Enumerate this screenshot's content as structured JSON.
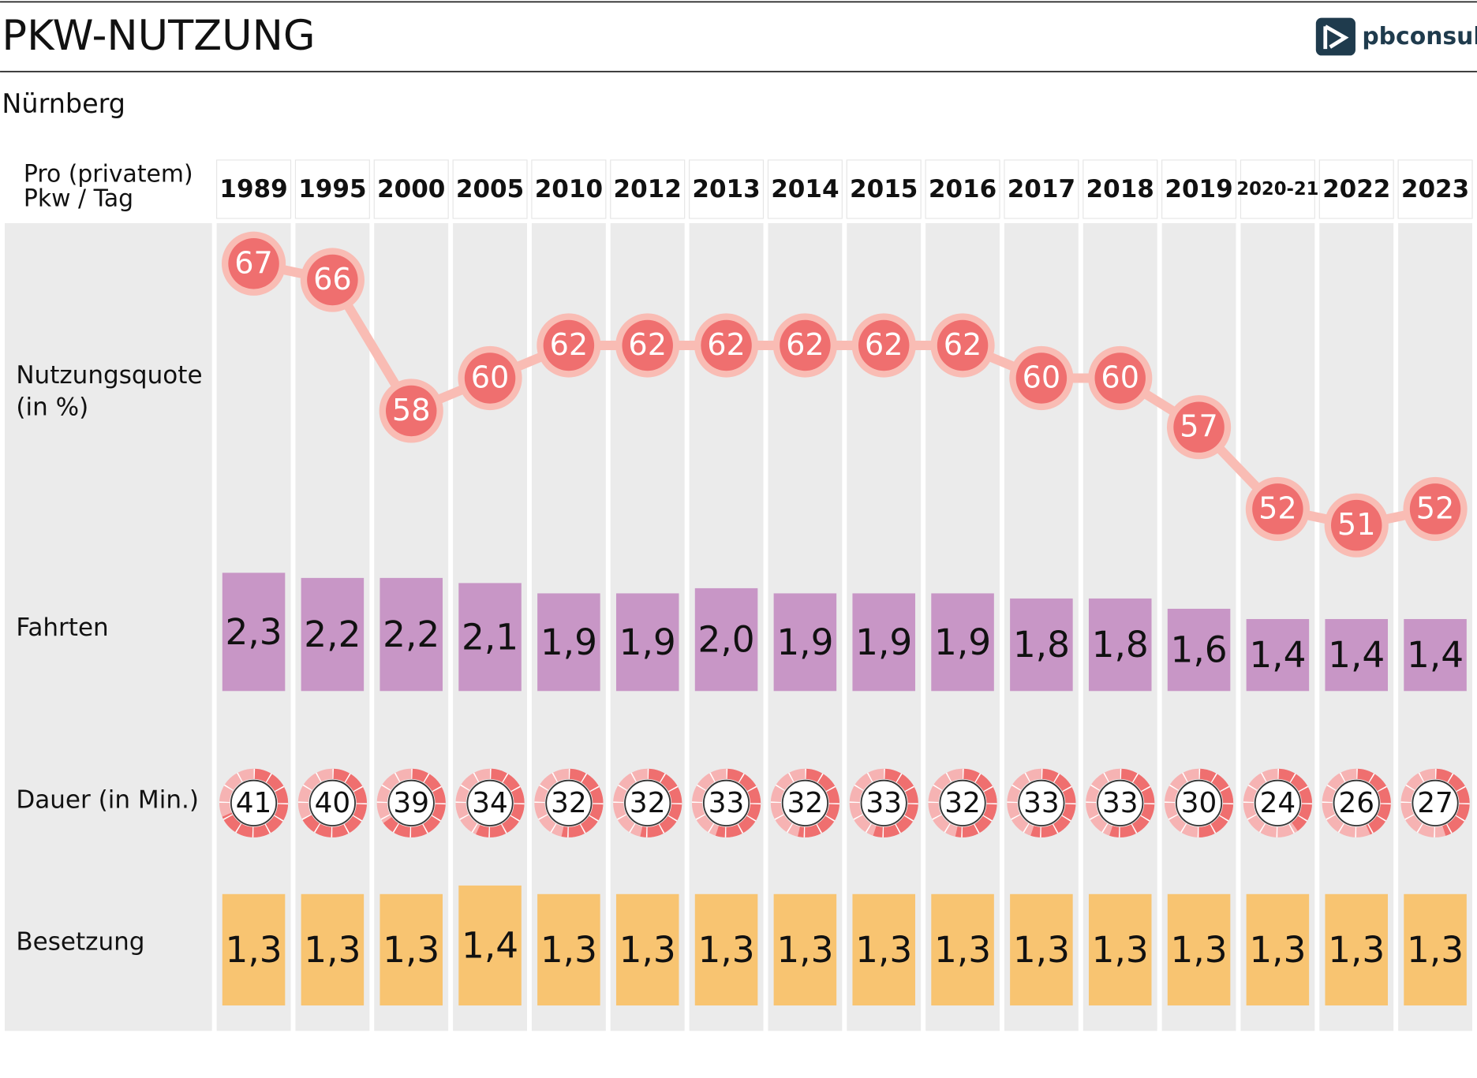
{
  "chart_data": {
    "type": "infographic",
    "title": "PKW-NUTZUNG",
    "subtitle": "Nürnberg",
    "logo": "pbconsult",
    "header_label": "Pro (privatem) Pkw / Tag",
    "categories": [
      "1989",
      "1995",
      "2000",
      "2005",
      "2010",
      "2012",
      "2013",
      "2014",
      "2015",
      "2016",
      "2017",
      "2018",
      "2019",
      "2020-21",
      "2022",
      "2023"
    ],
    "series": [
      {
        "name": "Nutzungsquote (in %)",
        "kind": "line",
        "color": "#ef6f6f",
        "halo": "#f9bcb4",
        "values": [
          67,
          66,
          58,
          60,
          62,
          62,
          62,
          62,
          62,
          62,
          60,
          60,
          57,
          52,
          51,
          52
        ]
      },
      {
        "name": "Fahrten",
        "kind": "bar",
        "color": "#c896c6",
        "values": [
          2.3,
          2.2,
          2.2,
          2.1,
          1.9,
          1.9,
          2.0,
          1.9,
          1.9,
          1.9,
          1.8,
          1.8,
          1.6,
          1.4,
          1.4,
          1.4
        ],
        "value_labels": [
          "2,3",
          "2,2",
          "2,2",
          "2,1",
          "1,9",
          "1,9",
          "2,0",
          "1,9",
          "1,9",
          "1,9",
          "1,8",
          "1,8",
          "1,6",
          "1,4",
          "1,4",
          "1,4"
        ]
      },
      {
        "name": "Dauer (in Min.)",
        "kind": "gauge",
        "color": "#ef6f6f",
        "values": [
          41,
          40,
          39,
          34,
          32,
          32,
          33,
          32,
          33,
          32,
          33,
          33,
          30,
          24,
          26,
          27
        ]
      },
      {
        "name": "Besetzung",
        "kind": "bar",
        "color": "#f8c471",
        "values": [
          1.3,
          1.3,
          1.3,
          1.4,
          1.3,
          1.3,
          1.3,
          1.3,
          1.3,
          1.3,
          1.3,
          1.3,
          1.3,
          1.3,
          1.3,
          1.3
        ],
        "value_labels": [
          "1,3",
          "1,3",
          "1,3",
          "1,4",
          "1,3",
          "1,3",
          "1,3",
          "1,3",
          "1,3",
          "1,3",
          "1,3",
          "1,3",
          "1,3",
          "1,3",
          "1,3",
          "1,3"
        ]
      }
    ]
  }
}
